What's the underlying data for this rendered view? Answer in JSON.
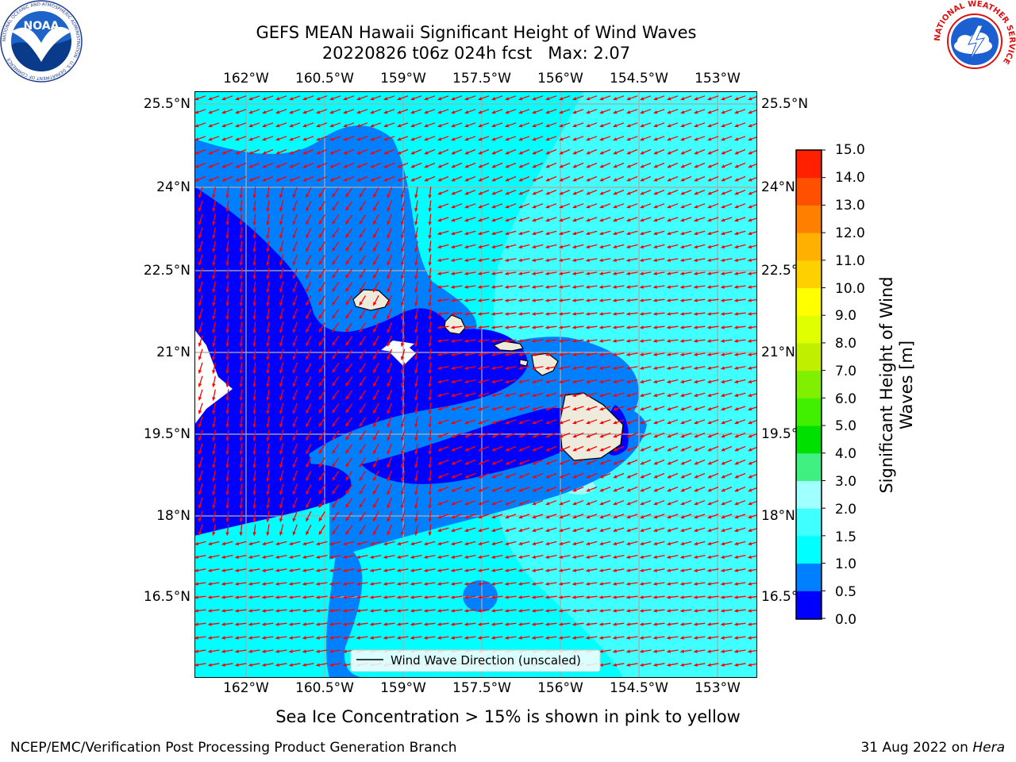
{
  "header": {
    "title_line1": "GEFS MEAN Hawaii Significant Height of Wind Waves",
    "title_line2": "20220826 t06z 024h fcst   Max: 2.07"
  },
  "logos": {
    "noaa": {
      "center_text": "NOAA",
      "ring_text": "NATIONAL OCEANIC AND ATMOSPHERIC ADMINISTRATION · U.S. DEPARTMENT OF COMMERCE"
    },
    "nws": {
      "ring_text": "NATIONAL WEATHER SERVICE"
    }
  },
  "map": {
    "lon_labels": [
      "162°W",
      "160.5°W",
      "159°W",
      "157.5°W",
      "156°W",
      "154.5°W",
      "153°W"
    ],
    "lat_labels": [
      "25.5°N",
      "24°N",
      "22.5°N",
      "21°N",
      "19.5°N",
      "18°N",
      "16.5°N"
    ],
    "legend_label": "Wind Wave Direction (unscaled)",
    "arrow_color": "#ff0000"
  },
  "colorbar": {
    "label": "Significant Height of Wind Waves [m]",
    "label_line1": "Significant Height of Wind",
    "label_line2": "Waves [m]",
    "ticks": [
      "15.0",
      "14.0",
      "13.0",
      "12.0",
      "11.0",
      "10.0",
      "9.0",
      "8.0",
      "7.0",
      "6.0",
      "5.0",
      "4.0",
      "3.0",
      "2.0",
      "1.5",
      "1.0",
      "0.5",
      "0.0"
    ],
    "colors_bottom_to_top": [
      "#0000ff",
      "#0080ff",
      "#00ffff",
      "#40ffff",
      "#a0ffff",
      "#40f080",
      "#00e000",
      "#40f000",
      "#80f000",
      "#c0f000",
      "#e0ff00",
      "#ffff00",
      "#ffd000",
      "#ffb000",
      "#ff8000",
      "#ff5000",
      "#ff2000"
    ]
  },
  "caption": "Sea Ice Concentration > 15% is shown in pink to yellow",
  "footer": {
    "left": "NCEP/EMC/Verification Post Processing Product Generation Branch",
    "right_prefix": "31 Aug 2022 on ",
    "right_host": "Hera"
  }
}
